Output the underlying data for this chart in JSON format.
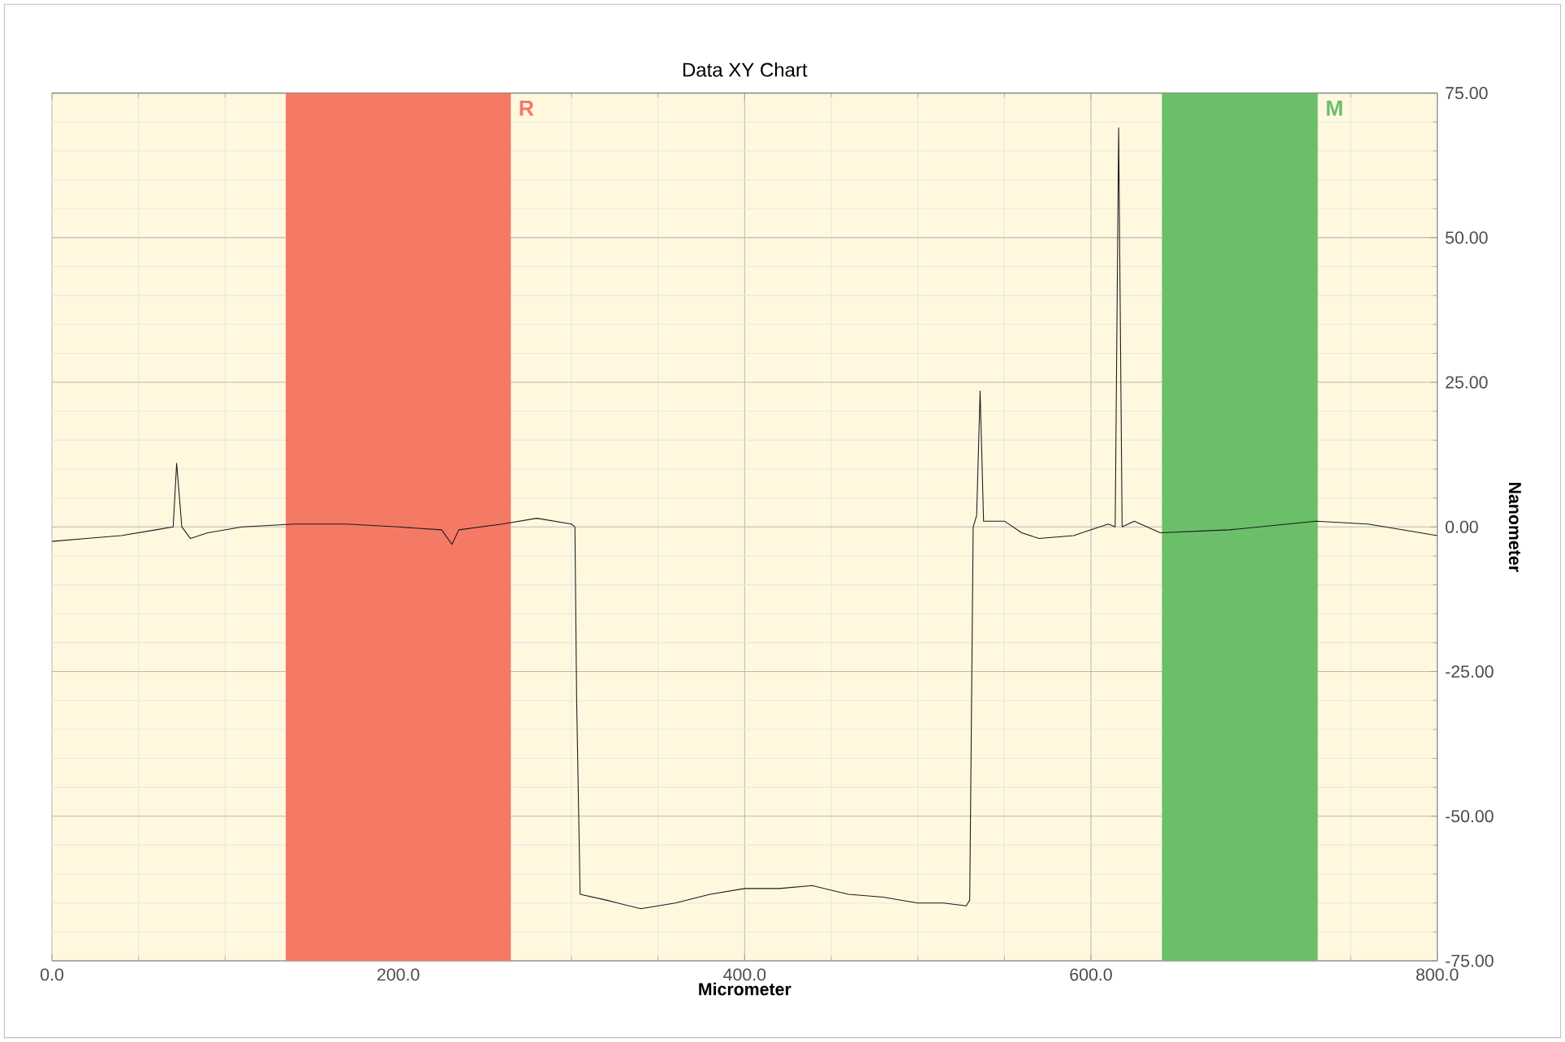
{
  "chart_data": {
    "type": "line",
    "title": "Data XY Chart",
    "xlabel": "Micrometer",
    "ylabel": "Nanometer",
    "x": [
      0,
      20,
      40,
      60,
      70,
      72,
      75,
      80,
      90,
      110,
      140,
      170,
      200,
      225,
      231,
      235,
      260,
      280,
      300,
      302,
      303,
      305,
      320,
      340,
      360,
      380,
      400,
      420,
      439,
      460,
      480,
      500,
      515,
      528,
      530,
      532,
      534,
      536,
      538,
      550,
      560,
      570,
      590,
      605,
      610,
      614,
      616,
      618,
      625,
      640,
      680,
      730,
      760,
      800
    ],
    "series": [
      {
        "color": "#1a1a1a",
        "values": [
          -2.5,
          -2,
          -1.5,
          -0.5,
          0,
          11,
          0,
          -2,
          -1,
          0,
          0.5,
          0.5,
          0,
          -0.5,
          -3,
          -0.5,
          0.5,
          1.5,
          0.5,
          0,
          -30,
          -63.5,
          -64.5,
          -66,
          -65,
          -63.5,
          -62.5,
          -62.5,
          -62,
          -63.5,
          -64,
          -65,
          -65,
          -65.5,
          -64.5,
          0,
          2,
          23.5,
          1,
          1,
          -1,
          -2,
          -1.5,
          0,
          0.5,
          0,
          69,
          0,
          1,
          -1,
          -0.5,
          1,
          0.5,
          -1.5
        ]
      }
    ],
    "xlim": [
      0,
      800
    ],
    "ylim": [
      -75,
      75
    ],
    "xticks": [
      {
        "value": 0,
        "label": "0.0"
      },
      {
        "value": 200,
        "label": "200.0"
      },
      {
        "value": 400,
        "label": "400.0"
      },
      {
        "value": 600,
        "label": "600.0"
      },
      {
        "value": 800,
        "label": "800.0"
      }
    ],
    "yticks": [
      {
        "value": -75,
        "label": "-75.00"
      },
      {
        "value": -50,
        "label": "-50.00"
      },
      {
        "value": -25,
        "label": "-25.00"
      },
      {
        "value": 0,
        "label": "0.00"
      },
      {
        "value": 25,
        "label": "25.00"
      },
      {
        "value": 50,
        "label": "50.00"
      },
      {
        "value": 75,
        "label": "75.00"
      }
    ],
    "bands": [
      {
        "axis": "x",
        "from": 135,
        "to": 265,
        "label": "R",
        "color": "#f47a66"
      },
      {
        "axis": "x",
        "from": 641,
        "to": 731,
        "label": "M",
        "color": "#6cbf6a"
      }
    ],
    "grid": true,
    "marker": "none",
    "line_style": "solid"
  }
}
